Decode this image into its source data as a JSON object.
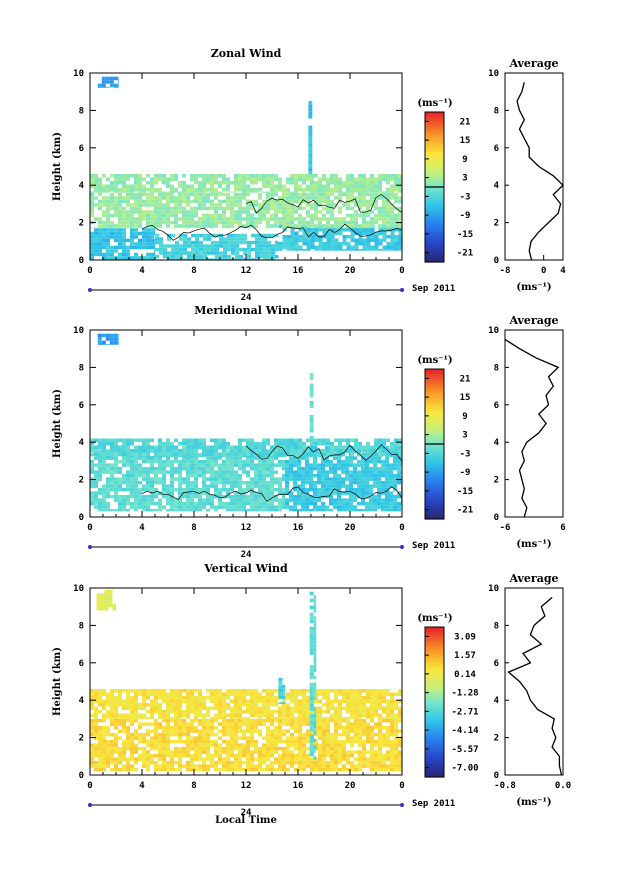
{
  "figure": {
    "xlabel": "Local Time",
    "date_label": "Sep 2011",
    "day_label": "24",
    "unit_label": "(ms⁻¹)"
  },
  "chart_data": [
    {
      "type": "heatmap",
      "title": "Zonal Wind",
      "ylabel": "Height (km)",
      "xlabel": "",
      "xlim": [
        0,
        24
      ],
      "ylim": [
        0,
        10
      ],
      "xticks": [
        "0",
        "4",
        "8",
        "12",
        "16",
        "20",
        "0"
      ],
      "yticks": [
        "0",
        "2",
        "4",
        "6",
        "8",
        "10"
      ],
      "colorbar_unit": "(ms⁻¹)",
      "colorbar_range": [
        -24,
        24
      ],
      "colorbar_ticks": [
        "21",
        "15",
        "9",
        "3",
        "-3",
        "-9",
        "-15",
        "-21"
      ],
      "zero_contour": true,
      "bands": [
        {
          "x0": 0.0,
          "x1": 5.0,
          "y0": 0.0,
          "y1": 1.7,
          "value": -6
        },
        {
          "x0": 5.0,
          "x1": 14.5,
          "y0": 0.0,
          "y1": 1.4,
          "value": -4
        },
        {
          "x0": 14.5,
          "x1": 24.0,
          "y0": 0.5,
          "y1": 1.9,
          "value": -5
        },
        {
          "x0": 0.0,
          "x1": 24.0,
          "y0": 1.7,
          "y1": 3.6,
          "value": 2
        },
        {
          "x0": 0.0,
          "x1": 24.0,
          "y0": 3.6,
          "y1": 4.6,
          "value": 2
        },
        {
          "x0": 16.8,
          "x1": 17.1,
          "y0": 4.6,
          "y1": 8.5,
          "value": -6
        },
        {
          "x0": 0.6,
          "x1": 2.2,
          "y0": 9.2,
          "y1": 9.8,
          "value": -9
        }
      ],
      "average": {
        "xlim": [
          -8,
          4
        ],
        "xticks": [
          "-8",
          "0",
          "4"
        ],
        "unit": "(ms⁻¹)",
        "height": [
          0.0,
          0.5,
          1.0,
          1.5,
          2.0,
          2.5,
          3.0,
          3.5,
          4.0,
          4.5,
          5.0,
          5.5,
          6.0,
          6.5,
          7.0,
          7.5,
          8.0,
          8.5,
          9.0,
          9.5
        ],
        "value": [
          -2.5,
          -3.0,
          -2.6,
          -1.0,
          1.0,
          3.0,
          3.5,
          2.0,
          4.0,
          2.0,
          -1.0,
          -3.0,
          -3.0,
          -4.0,
          -5.0,
          -4.0,
          -5.0,
          -5.5,
          -4.5,
          -4.0
        ]
      }
    },
    {
      "type": "heatmap",
      "title": "Meridional Wind",
      "ylabel": "Height (km)",
      "xlabel": "",
      "xlim": [
        0,
        24
      ],
      "ylim": [
        0,
        10
      ],
      "xticks": [
        "0",
        "4",
        "8",
        "12",
        "16",
        "20",
        "0"
      ],
      "yticks": [
        "0",
        "2",
        "4",
        "6",
        "8",
        "10"
      ],
      "colorbar_unit": "(ms⁻¹)",
      "colorbar_range": [
        -24,
        24
      ],
      "colorbar_ticks": [
        "21",
        "15",
        "9",
        "3",
        "-3",
        "-9",
        "-15",
        "-21"
      ],
      "zero_contour": true,
      "bands": [
        {
          "x0": 0.0,
          "x1": 15.0,
          "y0": 0.3,
          "y1": 3.8,
          "value": -2
        },
        {
          "x0": 15.0,
          "x1": 24.0,
          "y0": 0.3,
          "y1": 3.8,
          "value": -5
        },
        {
          "x0": 0.0,
          "x1": 24.0,
          "y0": 3.2,
          "y1": 4.2,
          "value": -3
        },
        {
          "x0": 16.9,
          "x1": 17.2,
          "y0": 4.2,
          "y1": 7.7,
          "value": -1
        },
        {
          "x0": 0.6,
          "x1": 2.2,
          "y0": 9.2,
          "y1": 9.8,
          "value": -10
        }
      ],
      "average": {
        "xlim": [
          -6,
          6
        ],
        "xticks": [
          "-6",
          "6"
        ],
        "unit": "(ms⁻¹)",
        "height": [
          0.0,
          0.5,
          1.0,
          1.5,
          2.0,
          2.5,
          3.0,
          3.5,
          4.0,
          4.5,
          5.0,
          5.5,
          6.0,
          6.5,
          7.0,
          7.5,
          8.0,
          8.5,
          9.0,
          9.5
        ],
        "value": [
          -2.0,
          -1.5,
          -2.5,
          -2.0,
          -2.5,
          -3.0,
          -2.0,
          -2.5,
          -1.5,
          1.0,
          2.5,
          1.0,
          3.0,
          2.5,
          4.0,
          3.0,
          5.0,
          0.5,
          -3.0,
          -6.0
        ]
      }
    },
    {
      "type": "heatmap",
      "title": "Vertical Wind",
      "ylabel": "Height (km)",
      "xlabel": "Local Time",
      "xlim": [
        0,
        24
      ],
      "ylim": [
        0,
        10
      ],
      "xticks": [
        "0",
        "4",
        "8",
        "12",
        "16",
        "20",
        "0"
      ],
      "yticks": [
        "0",
        "2",
        "4",
        "6",
        "8",
        "10"
      ],
      "colorbar_unit": "(ms⁻¹)",
      "colorbar_range": [
        -7.8,
        3.8
      ],
      "colorbar_ticks": [
        "3.09",
        "1.57",
        "0.14",
        "-1.28",
        "-2.71",
        "-4.14",
        "-5.57",
        "-7.00"
      ],
      "zero_contour": false,
      "bands": [
        {
          "x0": 0.0,
          "x1": 24.0,
          "y0": 0.2,
          "y1": 3.0,
          "value": 0.7
        },
        {
          "x0": 0.0,
          "x1": 24.0,
          "y0": 3.0,
          "y1": 4.6,
          "value": 0.5
        },
        {
          "x0": 16.9,
          "x1": 17.4,
          "y0": 0.8,
          "y1": 9.8,
          "value": -2.5
        },
        {
          "x0": 0.5,
          "x1": 2.0,
          "y0": 8.8,
          "y1": 9.9,
          "value": -0.2
        },
        {
          "x0": 14.5,
          "x1": 15.0,
          "y0": 3.8,
          "y1": 5.2,
          "value": -3.0
        }
      ],
      "average": {
        "xlim": [
          -0.8,
          0.0
        ],
        "xticks": [
          "-0.8",
          "0.0"
        ],
        "unit": "(ms⁻¹)",
        "height": [
          0.0,
          0.5,
          1.0,
          1.5,
          2.0,
          2.5,
          3.0,
          3.5,
          4.0,
          4.5,
          5.0,
          5.5,
          6.0,
          6.5,
          7.0,
          7.5,
          8.0,
          8.5,
          9.0,
          9.5
        ],
        "value": [
          -0.02,
          -0.05,
          -0.05,
          -0.15,
          -0.1,
          -0.15,
          -0.12,
          -0.35,
          -0.45,
          -0.5,
          -0.6,
          -0.75,
          -0.45,
          -0.55,
          -0.3,
          -0.45,
          -0.4,
          -0.25,
          -0.3,
          -0.15
        ]
      }
    }
  ]
}
